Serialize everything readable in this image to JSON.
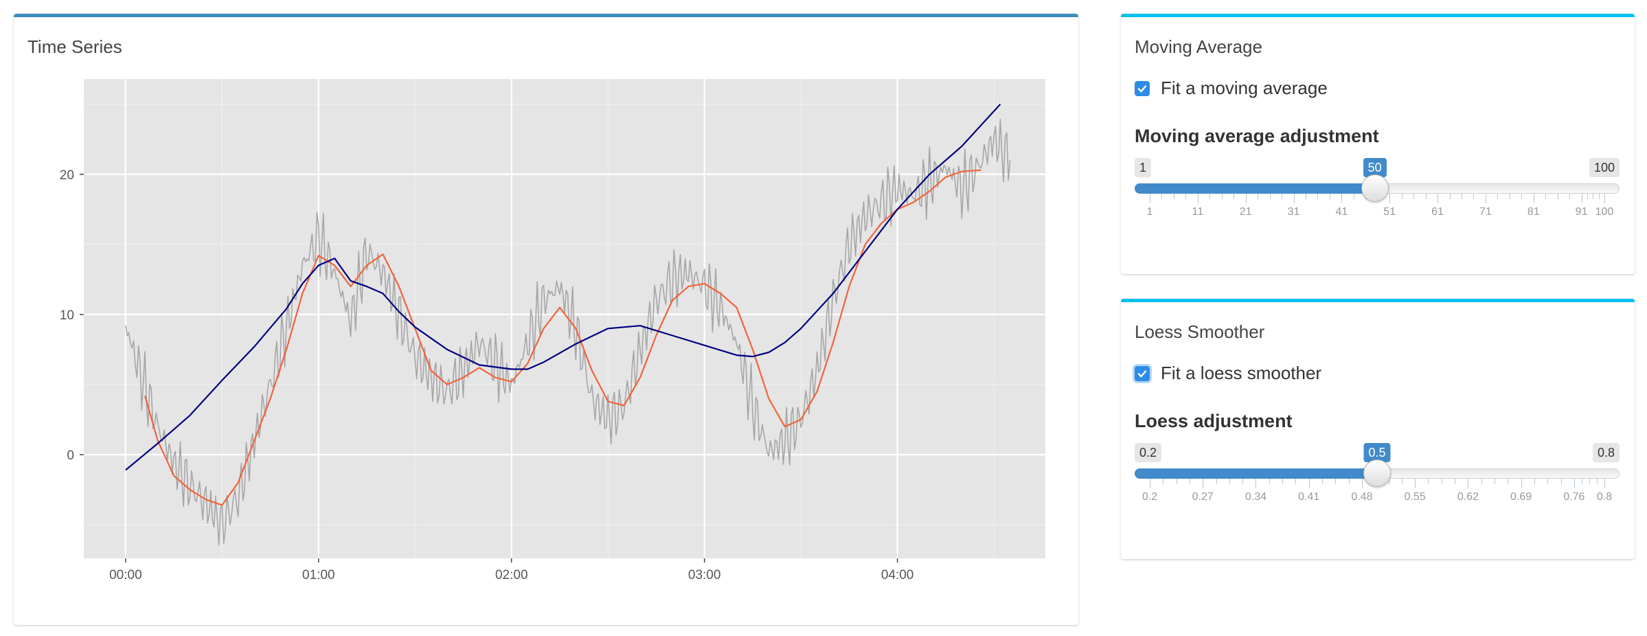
{
  "time_series": {
    "title": "Time Series"
  },
  "moving_average": {
    "title": "Moving Average",
    "checkbox_label": "Fit a moving average",
    "checked": true,
    "slider_label": "Moving average adjustment",
    "min_label": "1",
    "max_label": "100",
    "value_label": "50",
    "value": 50,
    "min": 1,
    "max": 100,
    "tick_labels": [
      "1",
      "11",
      "21",
      "31",
      "41",
      "51",
      "61",
      "71",
      "81",
      "91",
      "100"
    ]
  },
  "loess": {
    "title": "Loess Smoother",
    "checkbox_label": "Fit a loess smoother",
    "checked": true,
    "slider_label": "Loess adjustment",
    "min_label": "0.2",
    "max_label": "0.8",
    "value_label": "0.5",
    "value": 0.5,
    "min": 0.2,
    "max": 0.8,
    "tick_labels": [
      "0.2",
      "0.27",
      "0.34",
      "0.41",
      "0.48",
      "0.55",
      "0.62",
      "0.69",
      "0.76",
      "0.8"
    ]
  },
  "colors": {
    "raw_series": "#a6a6a6",
    "moving_average": "#f0643c",
    "loess": "#000080",
    "panel_bg": "#e5e5e5",
    "box_border_primary": "#3c8dbc",
    "box_border_info": "#00c0ef",
    "slider_accent": "#428bca"
  },
  "chart_data": {
    "type": "line",
    "title": "",
    "xlabel": "",
    "ylabel": "",
    "x_tick_labels": [
      "00:00",
      "01:00",
      "02:00",
      "03:00",
      "04:00"
    ],
    "y_ticks": [
      0,
      10,
      20
    ],
    "xlim_minutes": [
      -13,
      286
    ],
    "ylim": [
      -7.4,
      26.8
    ],
    "grid": true,
    "series": [
      {
        "key": "raw",
        "x_minutes": [
          0,
          5,
          10,
          15,
          20,
          25,
          30,
          35,
          40,
          45,
          50,
          55,
          60,
          65,
          70,
          75,
          80,
          85,
          90,
          95,
          100,
          105,
          110,
          115,
          120,
          125,
          130,
          135,
          140,
          145,
          150,
          155,
          160,
          165,
          170,
          175,
          180,
          185,
          190,
          195,
          200,
          205,
          210,
          215,
          220,
          225,
          230,
          235,
          240,
          245,
          250,
          255,
          260,
          265,
          270,
          275
        ],
        "y": [
          9.2,
          5.5,
          2.0,
          -0.6,
          -2.2,
          -3.5,
          -5.0,
          -3.0,
          1.0,
          5.0,
          9.0,
          13.5,
          15.5,
          13.0,
          9.5,
          14.5,
          13.0,
          10.0,
          7.0,
          5.5,
          4.5,
          6.0,
          8.0,
          6.5,
          5.0,
          8.0,
          11.0,
          12.0,
          9.0,
          4.0,
          2.5,
          3.5,
          7.5,
          11.0,
          12.5,
          13.0,
          12.0,
          10.5,
          8.0,
          3.5,
          0.2,
          1.0,
          2.5,
          6.0,
          11.0,
          15.0,
          17.0,
          18.0,
          19.0,
          18.5,
          19.5,
          20.5,
          19.0,
          20.5,
          22.5,
          21.0
        ]
      },
      {
        "key": "moving_average",
        "x_minutes": [
          6,
          10,
          15,
          20,
          25,
          30,
          35,
          40,
          45,
          50,
          55,
          60,
          65,
          70,
          75,
          80,
          85,
          90,
          95,
          100,
          105,
          110,
          115,
          120,
          125,
          130,
          135,
          140,
          145,
          150,
          155,
          160,
          165,
          170,
          175,
          180,
          185,
          190,
          195,
          200,
          205,
          210,
          215,
          220,
          225,
          230,
          235,
          240,
          245,
          250,
          255,
          260,
          266
        ],
        "y": [
          4.2,
          1.0,
          -1.5,
          -2.5,
          -3.2,
          -3.6,
          -2.0,
          1.0,
          4.0,
          7.5,
          11.5,
          14.2,
          13.5,
          12.0,
          13.5,
          14.3,
          12.0,
          9.0,
          6.0,
          5.0,
          5.5,
          6.2,
          5.5,
          5.2,
          6.5,
          9.0,
          10.5,
          9.0,
          6.0,
          3.8,
          3.5,
          5.5,
          8.5,
          11.0,
          12.0,
          12.2,
          11.5,
          10.5,
          7.5,
          4.0,
          2.0,
          2.5,
          4.5,
          8.0,
          12.0,
          15.0,
          16.5,
          17.5,
          18.0,
          18.8,
          19.8,
          20.2,
          20.3
        ]
      },
      {
        "key": "loess",
        "x_minutes": [
          0,
          10,
          20,
          30,
          40,
          50,
          55,
          60,
          65,
          70,
          75,
          80,
          85,
          90,
          100,
          110,
          120,
          125,
          130,
          140,
          150,
          160,
          170,
          180,
          190,
          195,
          200,
          205,
          210,
          220,
          230,
          240,
          250,
          260,
          272
        ],
        "y": [
          -1.1,
          0.8,
          2.8,
          5.3,
          7.7,
          10.4,
          12.2,
          13.5,
          14.0,
          12.4,
          12.0,
          11.5,
          10.2,
          9.1,
          7.5,
          6.4,
          6.1,
          6.1,
          6.6,
          7.9,
          9.0,
          9.2,
          8.5,
          7.8,
          7.1,
          7.0,
          7.3,
          8.0,
          9.0,
          11.5,
          14.5,
          17.5,
          20.0,
          22.0,
          25.0
        ]
      }
    ]
  }
}
